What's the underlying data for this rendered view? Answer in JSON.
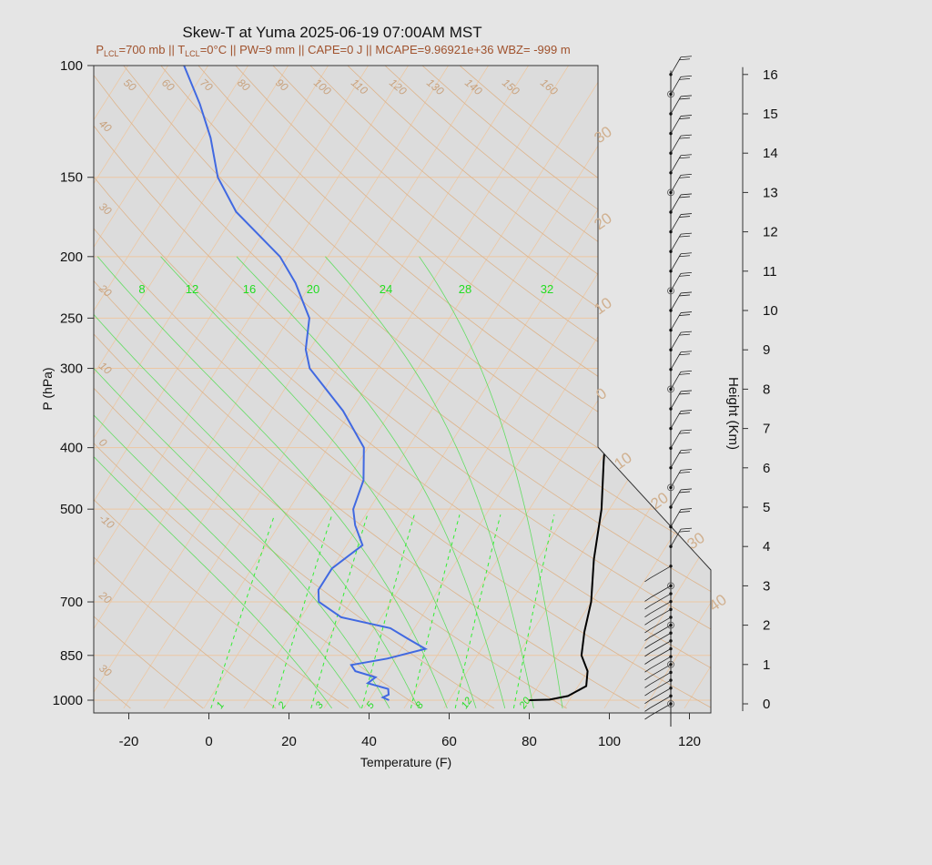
{
  "chart_data": {
    "type": "line",
    "title": "Skew-T at Yuma 2025-06-19 07:00AM MST",
    "subtitle": {
      "plcl_label": "P",
      "plcl_sub": "LCL",
      "plcl_value": "=700 mb || T",
      "tlcl_sub": "LCL",
      "rest": "=0°C || PW=9 mm || CAPE=0 J || MCAPE=9.96921e+36 WBZ= -999 m"
    },
    "xlabel": "Temperature (F)",
    "ylabel": "P (hPa)",
    "y2label": "Height (Km)",
    "x_ticks": [
      "-20",
      "0",
      "20",
      "40",
      "60",
      "80",
      "100",
      "120"
    ],
    "x_tick_values": [
      -20,
      0,
      20,
      40,
      60,
      80,
      100,
      120
    ],
    "y_ticks": [
      "100",
      "150",
      "200",
      "250",
      "300",
      "400",
      "500",
      "700",
      "850",
      "1000"
    ],
    "y_tick_values": [
      100,
      150,
      200,
      250,
      300,
      400,
      500,
      700,
      850,
      1000
    ],
    "height_ticks": [
      "0",
      "1",
      "2",
      "3",
      "4",
      "5",
      "6",
      "7",
      "8",
      "9",
      "10",
      "11",
      "12",
      "13",
      "14",
      "15",
      "16"
    ],
    "xlim": [
      -28,
      125
    ],
    "ylim_pressure": [
      1030,
      100
    ],
    "isotherm_labels_top": [
      "50",
      "60",
      "70",
      "80",
      "90",
      "100",
      "110",
      "120",
      "130",
      "140",
      "150",
      "160"
    ],
    "isotherm_labels_left": [
      "40",
      "30",
      "20",
      "10",
      "0",
      "-10",
      "20",
      "30"
    ],
    "isotherm_labels_right": [
      "30",
      "20",
      "10",
      "0",
      "10",
      "20",
      "30",
      "40"
    ],
    "mixing_ratio_labels_top": [
      "8",
      "12",
      "16",
      "20",
      "24",
      "28",
      "32"
    ],
    "mixing_ratio_labels_bottom": [
      "1",
      "2",
      "3",
      "5",
      "8",
      "12",
      "20"
    ],
    "series": [
      {
        "name": "Temperature",
        "color": "#000000",
        "points": [
          [
            1000,
            80
          ],
          [
            998,
            85
          ],
          [
            985,
            89
          ],
          [
            950,
            92
          ],
          [
            900,
            90
          ],
          [
            850,
            86
          ],
          [
            780,
            83
          ],
          [
            700,
            80
          ],
          [
            600,
            74
          ],
          [
            500,
            68
          ],
          [
            420,
            61
          ],
          [
            350,
            54
          ],
          [
            300,
            47
          ],
          [
            250,
            38
          ],
          [
            200,
            29
          ],
          [
            170,
            22
          ],
          [
            150,
            17
          ],
          [
            130,
            12
          ],
          [
            115,
            10
          ],
          [
            100,
            12
          ]
        ]
      },
      {
        "name": "Dewpoint",
        "color": "#4169e1",
        "points": [
          [
            1000,
            45
          ],
          [
            990,
            43
          ],
          [
            980,
            44
          ],
          [
            960,
            43
          ],
          [
            940,
            37
          ],
          [
            920,
            38
          ],
          [
            900,
            32
          ],
          [
            880,
            30
          ],
          [
            860,
            38
          ],
          [
            830,
            46
          ],
          [
            800,
            40
          ],
          [
            770,
            34
          ],
          [
            740,
            20
          ],
          [
            700,
            12
          ],
          [
            670,
            10
          ],
          [
            620,
            10
          ],
          [
            570,
            14
          ],
          [
            530,
            9
          ],
          [
            500,
            6
          ],
          [
            450,
            4
          ],
          [
            400,
            -1
          ],
          [
            350,
            -12
          ],
          [
            300,
            -27
          ],
          [
            280,
            -31
          ],
          [
            250,
            -35
          ],
          [
            220,
            -44
          ],
          [
            200,
            -52
          ],
          [
            170,
            -70
          ],
          [
            150,
            -80
          ],
          [
            130,
            -88
          ],
          [
            115,
            -96
          ],
          [
            100,
            -106
          ]
        ]
      }
    ],
    "wind_barb_heights_km": [
      0,
      0.2,
      0.4,
      0.6,
      0.8,
      1.0,
      1.2,
      1.4,
      1.6,
      1.8,
      2.0,
      2.2,
      2.4,
      2.6,
      2.8,
      3.0,
      3.5,
      4.0,
      4.5,
      5.0,
      5.5,
      6.0,
      6.5,
      7.0,
      7.5,
      8.0,
      8.5,
      9.0,
      9.5,
      10.0,
      10.5,
      11.0,
      11.5,
      12.0,
      12.5,
      13.0,
      13.5,
      14.0,
      14.5,
      15.0,
      15.5,
      16.0
    ],
    "colors": {
      "background": "#e5e5e5",
      "plot_background": "#dcdcdc",
      "grid": "#ecc7a3",
      "dry_adiabat": "#ddb48c",
      "mixing_ratio": "#33ee33",
      "moist_adiabat": "#44dd44",
      "subtitle": "#a0522d"
    },
    "grid": true,
    "legend": "none"
  }
}
